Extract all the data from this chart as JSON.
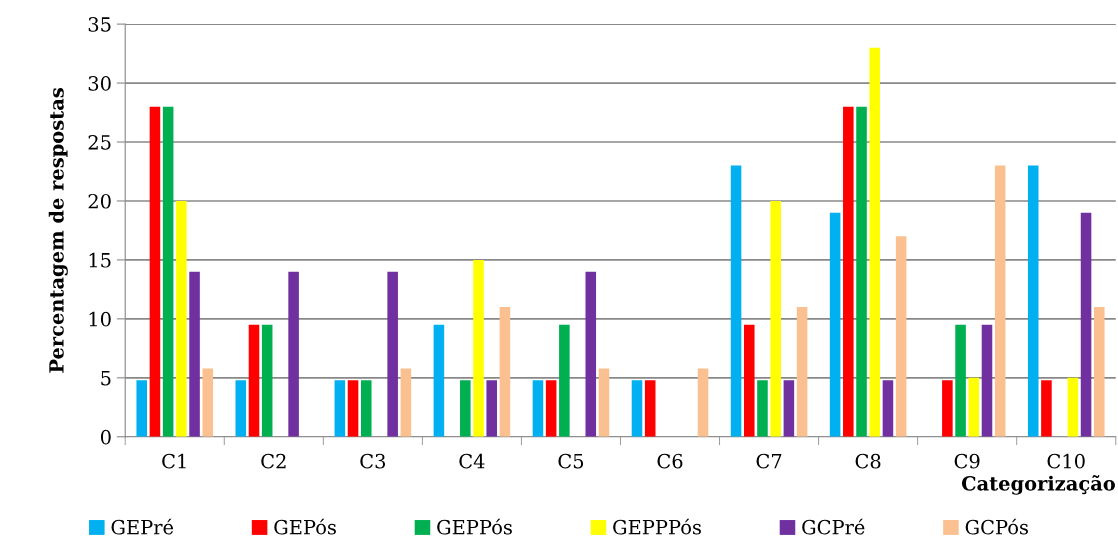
{
  "chart_data": {
    "type": "bar",
    "xlabel": "Categorização",
    "ylabel": "Percentagem de respostas",
    "categories": [
      "C1",
      "C2",
      "C3",
      "C4",
      "C5",
      "C6",
      "C7",
      "C8",
      "C9",
      "C10"
    ],
    "series": [
      {
        "name": "GEPré",
        "color": "#00b0f0",
        "values": [
          4.8,
          4.8,
          4.8,
          9.5,
          4.8,
          4.8,
          23,
          19,
          0,
          23
        ]
      },
      {
        "name": "GEPós",
        "color": "#ff0000",
        "values": [
          28,
          9.5,
          4.8,
          0,
          4.8,
          4.8,
          9.5,
          28,
          4.8,
          4.8
        ]
      },
      {
        "name": "GEPPós",
        "color": "#00b050",
        "values": [
          28,
          9.5,
          4.8,
          4.8,
          9.5,
          0,
          4.8,
          28,
          9.5,
          0
        ]
      },
      {
        "name": "GEPPPós",
        "color": "#ffff00",
        "values": [
          20,
          0,
          0,
          15,
          0,
          0,
          20,
          33,
          5,
          5
        ]
      },
      {
        "name": "GCPré",
        "color": "#7030a0",
        "values": [
          14,
          14,
          14,
          4.8,
          14,
          0,
          4.8,
          4.8,
          9.5,
          19
        ]
      },
      {
        "name": "GCPós",
        "color": "#fac090",
        "values": [
          5.8,
          0,
          5.8,
          11,
          5.8,
          5.8,
          11,
          17,
          23,
          11
        ]
      }
    ],
    "ylim": [
      0,
      35
    ],
    "yticks": [
      0,
      5,
      10,
      15,
      20,
      25,
      30,
      35
    ],
    "grid": "y",
    "legend": "bottom"
  }
}
